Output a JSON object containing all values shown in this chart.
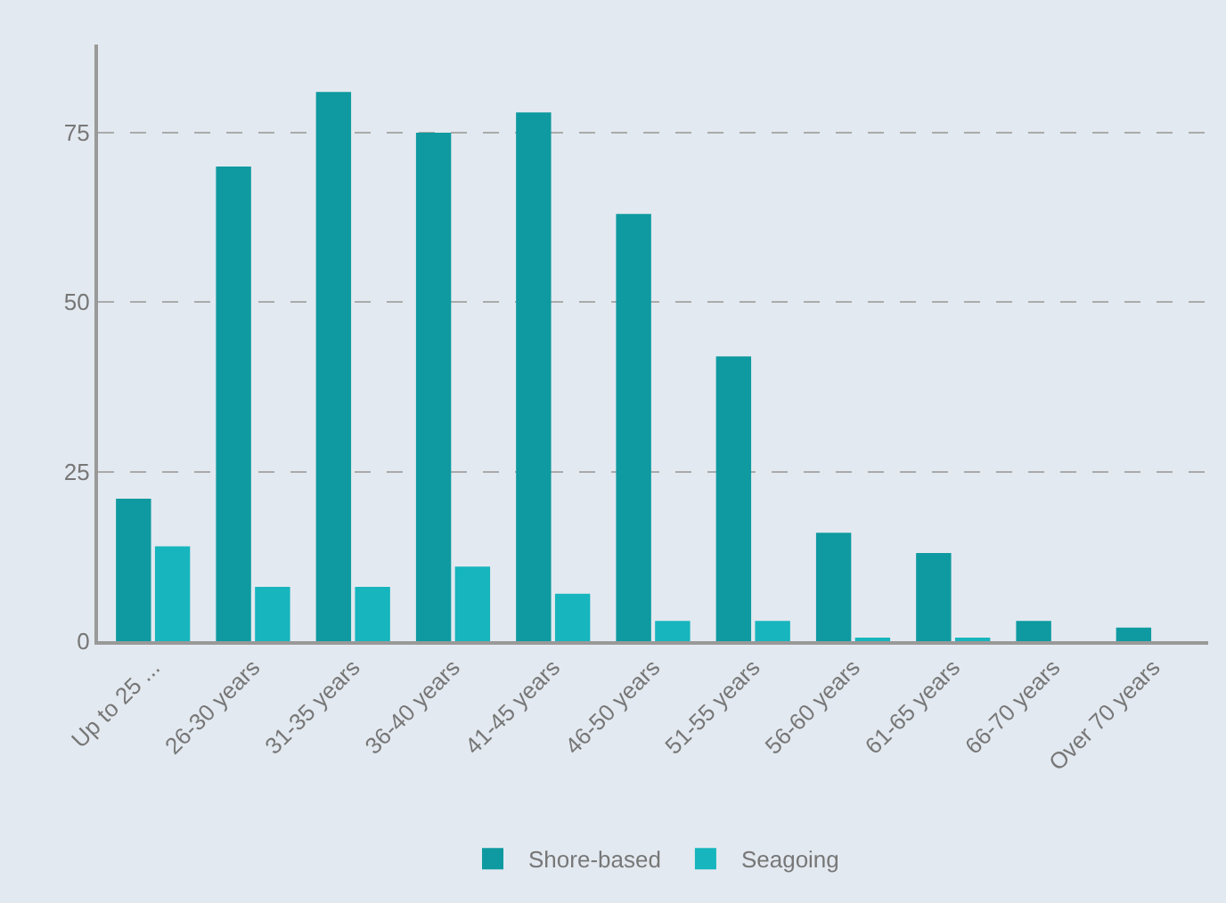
{
  "chart_data": {
    "type": "bar",
    "categories": [
      "Up to 25 ...",
      "26-30 years",
      "31-35 years",
      "36-40 years",
      "41-45 years",
      "46-50 years",
      "51-55 years",
      "56-60 years",
      "61-65 years",
      "66-70 years",
      "Over 70 years"
    ],
    "series": [
      {
        "name": "Shore-based",
        "color": "#0e9aa0",
        "values": [
          21,
          70,
          81,
          75,
          78,
          63,
          42,
          16,
          13,
          3,
          2
        ]
      },
      {
        "name": "Seagoing",
        "color": "#17b5bd",
        "values": [
          14,
          8,
          8,
          11,
          7,
          3,
          3,
          0.5,
          0.5,
          0,
          0
        ]
      }
    ],
    "ylim": [
      0,
      88
    ],
    "yticks": [
      0,
      25,
      50,
      75
    ],
    "grid": "y",
    "legend": "bottom"
  }
}
